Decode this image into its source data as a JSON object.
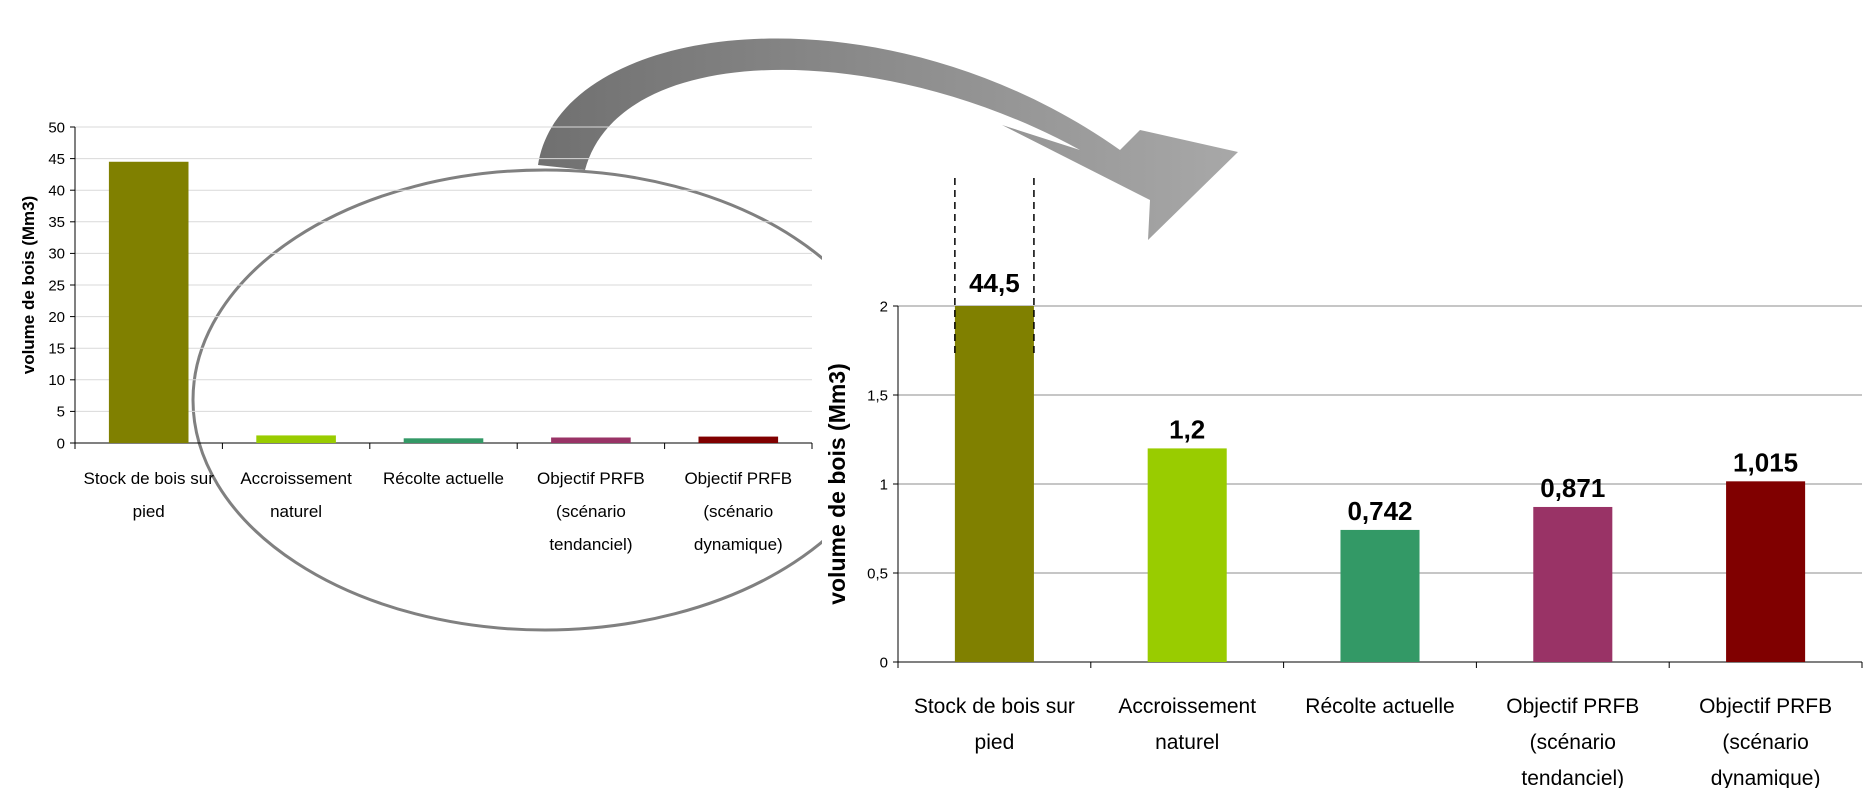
{
  "chart_data": [
    {
      "type": "bar",
      "categories": [
        [
          "Stock de bois sur",
          "pied"
        ],
        [
          "Accroissement",
          "naturel"
        ],
        [
          "Récolte actuelle"
        ],
        [
          "Objectif PRFB",
          "(scénario",
          "tendanciel)"
        ],
        [
          "Objectif PRFB",
          "(scénario",
          "dynamique)"
        ]
      ],
      "values": [
        44.5,
        1.2,
        0.742,
        0.871,
        1.015
      ],
      "colors": [
        "#808000",
        "#99CC00",
        "#339966",
        "#993366",
        "#800000"
      ],
      "ylabel": "volume de bois (Mm3)",
      "ylim": [
        0,
        50
      ],
      "yticks": [
        "0",
        "5",
        "10",
        "15",
        "20",
        "25",
        "30",
        "35",
        "40",
        "45",
        "50"
      ],
      "grid": true
    },
    {
      "type": "bar",
      "categories": [
        [
          "Stock de bois sur",
          "pied"
        ],
        [
          "Accroissement",
          "naturel"
        ],
        [
          "Récolte actuelle"
        ],
        [
          "Objectif PRFB",
          "(scénario",
          "tendanciel)"
        ],
        [
          "Objectif PRFB",
          "(scénario",
          "dynamique)"
        ]
      ],
      "values": [
        44.5,
        1.2,
        0.742,
        0.871,
        1.015
      ],
      "data_labels": [
        "44,5",
        "1,2",
        "0,742",
        "0,871",
        "1,015"
      ],
      "colors": [
        "#808000",
        "#99CC00",
        "#339966",
        "#993366",
        "#800000"
      ],
      "ylabel": "volume de bois (Mm3)",
      "ylim": [
        0,
        2
      ],
      "yticks": [
        "0",
        "0,5",
        "1",
        "1,5",
        "2"
      ],
      "grid": true,
      "truncated_bar": "Stock de bois sur pied"
    }
  ]
}
